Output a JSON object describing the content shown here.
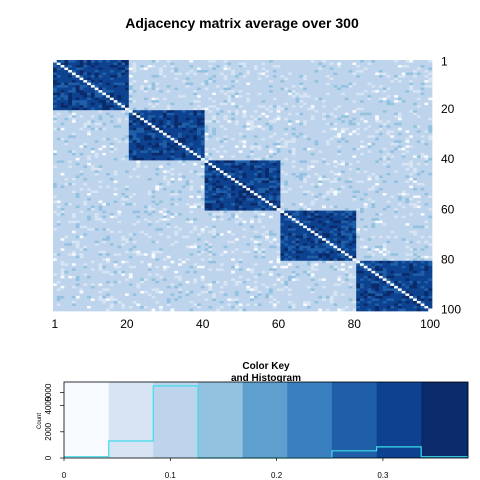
{
  "chart_data": [
    {
      "type": "heatmap",
      "title": "Adjacency matrix average over 300",
      "rows": 100,
      "cols": 100,
      "blocks": [
        {
          "start": 1,
          "end": 20
        },
        {
          "start": 21,
          "end": 40
        },
        {
          "start": 41,
          "end": 60
        },
        {
          "start": 61,
          "end": 80
        },
        {
          "start": 81,
          "end": 100
        }
      ],
      "diagonal_value": 0,
      "within_block_value_range": [
        0.3,
        0.38
      ],
      "between_block_value_range": [
        0.04,
        0.13
      ],
      "x_ticks": [
        "1",
        "20",
        "40",
        "60",
        "80",
        "100"
      ],
      "y_ticks": [
        "1",
        "20",
        "40",
        "60",
        "80",
        "100"
      ],
      "colors": {
        "diagonal": "#f7fbff",
        "palette": [
          "#f7fbff",
          "#d6e4f3",
          "#bdd4ec",
          "#93c2e0",
          "#5e9fd0",
          "#3a7fbf",
          "#1f5fa8",
          "#0d4290",
          "#0a2a6a"
        ]
      }
    },
    {
      "type": "bar",
      "title": "Color Key",
      "subtitle": "and Histogram",
      "ylabel": "Count",
      "y_ticks": [
        "0",
        "2000",
        "4000",
        "5000"
      ],
      "y_tick_values": [
        0,
        2000,
        4000,
        5000
      ],
      "ylim": [
        0,
        5800
      ],
      "x_ticks": [
        "0",
        "0.1",
        "0.2",
        "0.3"
      ],
      "x_tick_values": [
        0,
        0.1,
        0.2,
        0.3
      ],
      "xlim": [
        0,
        0.38
      ],
      "bins": [
        0,
        0.042,
        0.084,
        0.126,
        0.168,
        0.21,
        0.252,
        0.294,
        0.336,
        0.38
      ],
      "bin_colors": [
        "#f7fbff",
        "#d6e4f3",
        "#bdd4ec",
        "#93c2e0",
        "#5e9fd0",
        "#3a7fbf",
        "#1f5fa8",
        "#0d4290",
        "#0a2a6a"
      ],
      "counts": [
        100,
        1300,
        5500,
        0,
        0,
        0,
        550,
        850,
        100
      ],
      "histogram_color": "#3fdcec"
    }
  ]
}
